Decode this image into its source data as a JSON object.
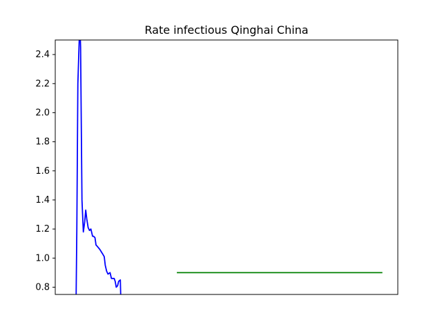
{
  "chart_data": {
    "type": "line",
    "title": "Rate infectious Qinghai China",
    "xlabel": "",
    "ylabel": "",
    "xlim": [
      0,
      100
    ],
    "ylim": [
      0.75,
      2.5
    ],
    "grid": false,
    "x_ticks_visible": false,
    "y_ticks": [
      "0.8",
      "1.0",
      "1.2",
      "1.4",
      "1.6",
      "1.8",
      "2.0",
      "2.2",
      "2.4"
    ],
    "series": [
      {
        "color": "#0000ff",
        "points": [
          [
            6.1,
            0.75
          ],
          [
            6.3,
            1.2
          ],
          [
            6.6,
            2.2
          ],
          [
            7.0,
            2.5
          ],
          [
            7.2,
            2.6
          ],
          [
            7.4,
            2.45
          ],
          [
            7.8,
            1.4
          ],
          [
            8.2,
            1.18
          ],
          [
            8.6,
            1.25
          ],
          [
            8.9,
            1.33
          ],
          [
            9.2,
            1.27
          ],
          [
            9.6,
            1.21
          ],
          [
            10.0,
            1.19
          ],
          [
            10.4,
            1.2
          ],
          [
            10.6,
            1.18
          ],
          [
            10.9,
            1.15
          ],
          [
            11.2,
            1.15
          ],
          [
            11.6,
            1.14
          ],
          [
            11.9,
            1.09
          ],
          [
            12.3,
            1.08
          ],
          [
            13.0,
            1.06
          ],
          [
            13.8,
            1.03
          ],
          [
            14.3,
            1.01
          ],
          [
            14.6,
            0.95
          ],
          [
            15.0,
            0.91
          ],
          [
            15.4,
            0.89
          ],
          [
            16.0,
            0.9
          ],
          [
            16.4,
            0.86
          ],
          [
            17.2,
            0.86
          ],
          [
            17.5,
            0.84
          ],
          [
            17.8,
            0.8
          ],
          [
            18.2,
            0.81
          ],
          [
            18.5,
            0.84
          ],
          [
            19.0,
            0.85
          ],
          [
            19.1,
            0.75
          ]
        ]
      },
      {
        "color": "#008000",
        "points": [
          [
            35.5,
            0.9
          ],
          [
            95.5,
            0.9
          ]
        ]
      }
    ]
  }
}
